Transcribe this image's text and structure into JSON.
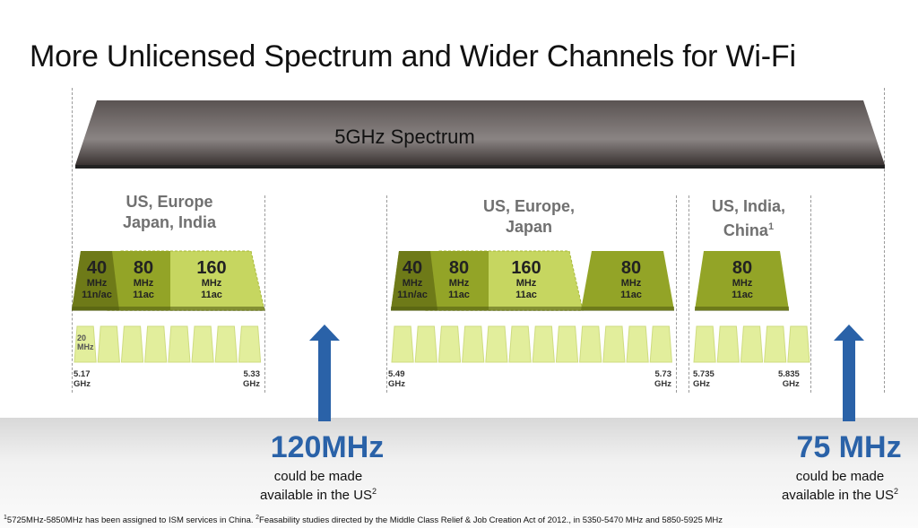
{
  "title": "More Unlicensed Spectrum and Wider Channels for Wi-Fi",
  "banner": "5GHz Spectrum",
  "regions": [
    {
      "line1": "US, Europe",
      "line2": "Japan, India",
      "sup": ""
    },
    {
      "line1": "US, Europe,",
      "line2": "Japan",
      "sup": ""
    },
    {
      "line1": "US, India,",
      "line2": "China",
      "sup": "1"
    }
  ],
  "channels": [
    {
      "num": "40",
      "unit": "MHz",
      "std": "11n/ac"
    },
    {
      "num": "80",
      "unit": "MHz",
      "std": "11ac"
    },
    {
      "num": "160",
      "unit": "MHz",
      "std": "11ac"
    },
    {
      "num": "40",
      "unit": "MHz",
      "std": "11n/ac"
    },
    {
      "num": "80",
      "unit": "MHz",
      "std": "11ac"
    },
    {
      "num": "160",
      "unit": "MHz",
      "std": "11ac"
    },
    {
      "num": "80",
      "unit": "MHz",
      "std": "11ac"
    },
    {
      "num": "80",
      "unit": "MHz",
      "std": "11ac"
    }
  ],
  "small_channel": {
    "num": "20",
    "unit": "MHz"
  },
  "frequencies": [
    {
      "value": "5.17",
      "unit": "GHz"
    },
    {
      "value": "5.33",
      "unit": "GHz"
    },
    {
      "value": "5.49",
      "unit": "GHz"
    },
    {
      "value": "5.73",
      "unit": "GHz"
    },
    {
      "value": "5.735",
      "unit": "GHz"
    },
    {
      "value": "5.835",
      "unit": "GHz"
    }
  ],
  "callouts": [
    {
      "value": "120MHz",
      "line1": "could be made",
      "line2": "available in the US",
      "sup": "2"
    },
    {
      "value": "75 MHz",
      "line1": "could be made",
      "line2": "available in the US",
      "sup": "2"
    }
  ],
  "footnote": {
    "sup1": "1",
    "text1": "5725MHz-5850MHz has been assigned to ISM services in China.  ",
    "sup2": "2",
    "text2": "Feasability studies directed by the Middle Class Relief & Job Creation Act of  2012., in 5350-5470 MHz and 5850-5925 MHz"
  },
  "colors": {
    "banner_dark": "#4a4342",
    "channel_dark": "#6e7a18",
    "channel_mid": "#93a427",
    "channel_light": "#c6d660",
    "subchannel": "#e2ee9c",
    "arrow_blue": "#2a62a8"
  }
}
